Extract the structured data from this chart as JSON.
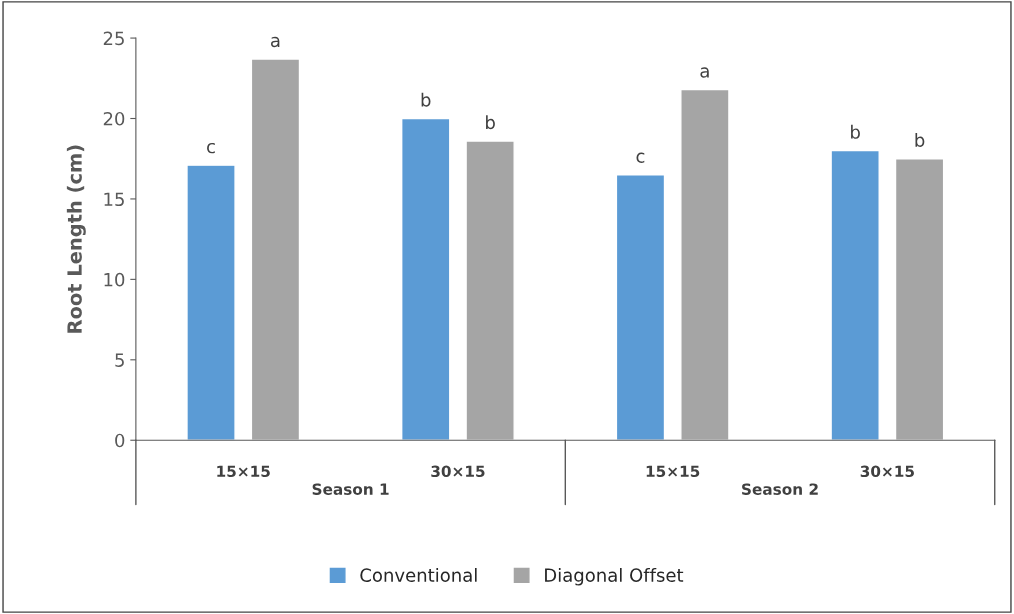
{
  "chart_data": {
    "type": "bar",
    "ylabel": "Root Length (cm)",
    "categories": [
      "15×15",
      "30×15",
      "15×15",
      "30×15"
    ],
    "series": [
      {
        "name": "Conventional",
        "color": "#5b9bd5",
        "values": [
          17.1,
          20.0,
          16.5,
          18.0
        ],
        "value_labels": [
          "c",
          "b",
          "c",
          "b"
        ]
      },
      {
        "name": "Diagonal Offset",
        "color": "#a5a5a5",
        "values": [
          23.7,
          18.6,
          21.8,
          17.5
        ],
        "value_labels": [
          "a",
          "b",
          "a",
          "b"
        ]
      }
    ],
    "annotations": [
      "Season 1",
      "Season 2"
    ],
    "ylim": [
      0,
      25
    ],
    "yticks": [
      0,
      5,
      10,
      15,
      20,
      25
    ],
    "grid": false,
    "legend": "bottom"
  }
}
